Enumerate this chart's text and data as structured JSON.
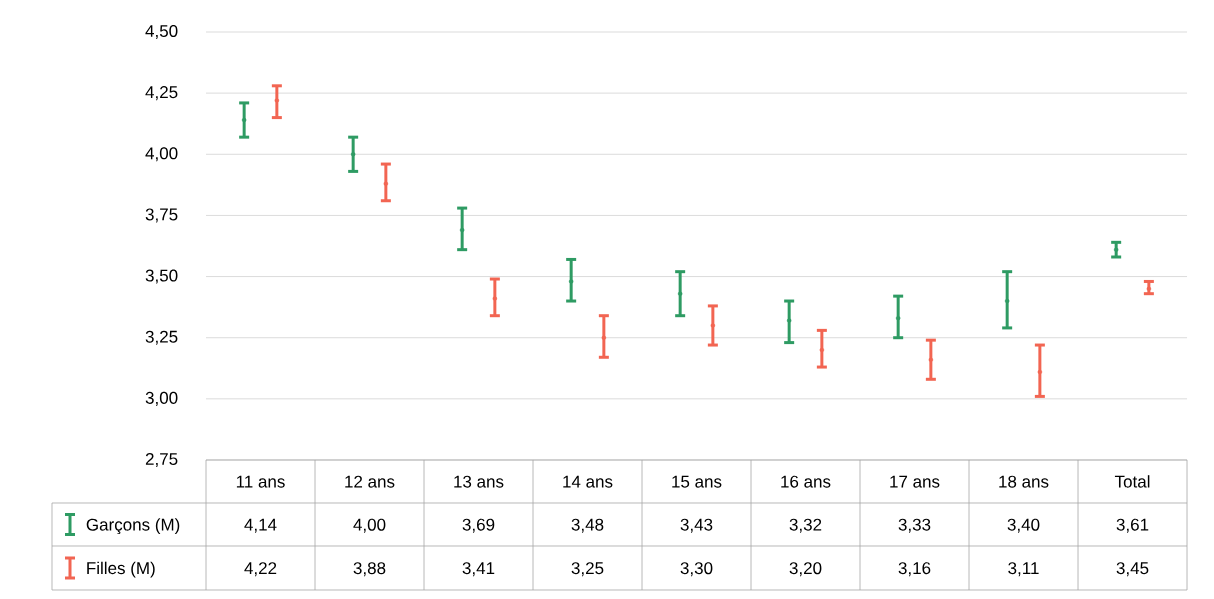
{
  "chart_data": {
    "type": "scatter",
    "categories": [
      "11 ans",
      "12 ans",
      "13 ans",
      "14 ans",
      "15 ans",
      "16 ans",
      "17 ans",
      "18 ans",
      "Total"
    ],
    "series": [
      {
        "name": "Garçons (M)",
        "color": "#2e9b63",
        "values": [
          4.14,
          4.0,
          3.69,
          3.48,
          3.43,
          3.32,
          3.33,
          3.4,
          3.61
        ],
        "value_labels": [
          "4,14",
          "4,00",
          "3,69",
          "3,48",
          "3,43",
          "3,32",
          "3,33",
          "3,40",
          "3,61"
        ],
        "errors": [
          [
            4.07,
            4.21
          ],
          [
            3.93,
            4.07
          ],
          [
            3.61,
            3.78
          ],
          [
            3.4,
            3.57
          ],
          [
            3.34,
            3.52
          ],
          [
            3.23,
            3.4
          ],
          [
            3.25,
            3.42
          ],
          [
            3.29,
            3.52
          ],
          [
            3.58,
            3.64
          ]
        ]
      },
      {
        "name": "Filles (M)",
        "color": "#f26552",
        "values": [
          4.22,
          3.88,
          3.41,
          3.25,
          3.3,
          3.2,
          3.16,
          3.11,
          3.45
        ],
        "value_labels": [
          "4,22",
          "3,88",
          "3,41",
          "3,25",
          "3,30",
          "3,20",
          "3,16",
          "3,11",
          "3,45"
        ],
        "errors": [
          [
            4.15,
            4.28
          ],
          [
            3.81,
            3.96
          ],
          [
            3.34,
            3.49
          ],
          [
            3.17,
            3.34
          ],
          [
            3.22,
            3.38
          ],
          [
            3.13,
            3.28
          ],
          [
            3.08,
            3.24
          ],
          [
            3.01,
            3.22
          ],
          [
            3.43,
            3.48
          ]
        ]
      }
    ],
    "ylim": [
      2.75,
      4.5
    ],
    "yticks": [
      {
        "value": 2.75,
        "label": "2,75"
      },
      {
        "value": 3.0,
        "label": "3,00"
      },
      {
        "value": 3.25,
        "label": "3,25"
      },
      {
        "value": 3.5,
        "label": "3,50"
      },
      {
        "value": 3.75,
        "label": "3,75"
      },
      {
        "value": 4.0,
        "label": "4,00"
      },
      {
        "value": 4.25,
        "label": "4,25"
      },
      {
        "value": 4.5,
        "label": "4,50"
      }
    ],
    "grid": "y",
    "legend": "bottom left"
  }
}
